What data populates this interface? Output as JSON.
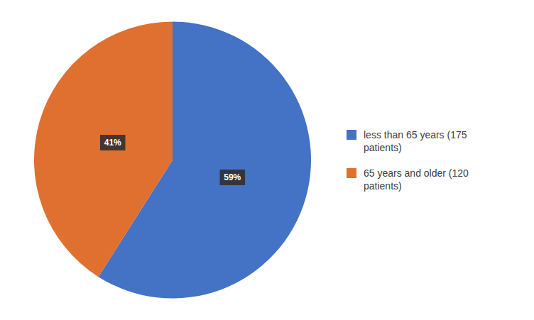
{
  "chart_data": {
    "type": "pie",
    "categories": [
      "less than 65 years (175\npatients)",
      "65 years and older (120\npatients)"
    ],
    "values": [
      59,
      41
    ],
    "value_labels": [
      "59%",
      "41%"
    ],
    "colors": [
      "#4472C4",
      "#E07030"
    ],
    "data_labels": true,
    "legend": "right"
  }
}
